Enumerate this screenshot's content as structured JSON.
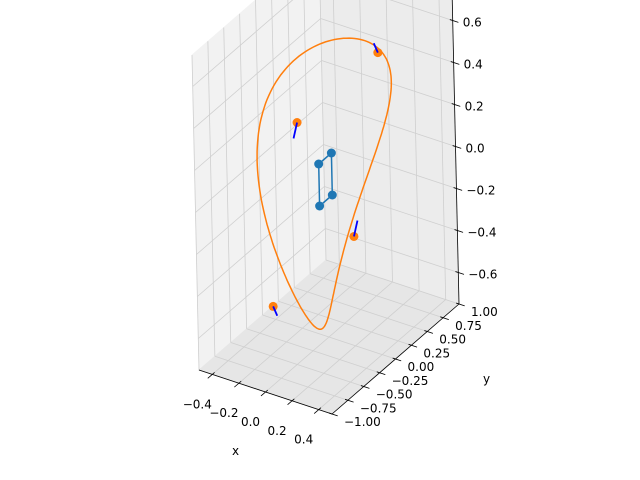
{
  "chart_data": {
    "type": "scatter",
    "projection": "3d",
    "title": "",
    "xlabel": "x",
    "ylabel": "y",
    "zlabel": "",
    "xlim": [
      -0.5,
      0.5
    ],
    "ylim": [
      -1.0,
      1.0
    ],
    "zlim": [
      -0.75,
      0.75
    ],
    "grid": true,
    "xticks": [
      -0.4,
      -0.2,
      0.0,
      0.2,
      0.4
    ],
    "xtick_labels": [
      "−0.4",
      "−0.2",
      "0.0",
      "0.2",
      "0.4"
    ],
    "yticks": [
      -1.0,
      -0.75,
      -0.5,
      -0.25,
      0.0,
      0.25,
      0.5,
      0.75,
      1.0
    ],
    "ytick_labels": [
      "−1.00",
      "−0.75",
      "−0.50",
      "−0.25",
      "0.00",
      "0.25",
      "0.50",
      "0.75",
      "1.00"
    ],
    "zticks": [
      -0.6,
      -0.4,
      -0.2,
      0.0,
      0.2,
      0.4,
      0.6
    ],
    "ztick_labels": [
      "−0.6",
      "−0.4",
      "−0.2",
      "0.0",
      "0.2",
      "0.4",
      "0.6"
    ],
    "colors": {
      "inner": "#1f77b4",
      "outer": "#ff7f0e",
      "arrows": "#0000ff"
    },
    "series": [
      {
        "kind": "scatter-loop",
        "color": "#1f77b4",
        "points": [
          {
            "x": 0.0,
            "y": -0.1,
            "z": 0.1
          },
          {
            "x": 0.0,
            "y": 0.1,
            "z": 0.1
          },
          {
            "x": 0.0,
            "y": 0.1,
            "z": -0.1
          },
          {
            "x": 0.0,
            "y": -0.1,
            "z": -0.1
          }
        ]
      },
      {
        "kind": "ellipse",
        "color": "#ff7f0e",
        "x_amplitude": 0.15,
        "y_radius": 0.9,
        "z_radius": 0.65
      },
      {
        "kind": "scatter",
        "color": "#ff7f0e",
        "points": [
          {
            "x": 0.106,
            "y": 0.636,
            "z": 0.46
          },
          {
            "x": -0.106,
            "y": 0.636,
            "z": -0.46
          },
          {
            "x": -0.106,
            "y": -0.636,
            "z": -0.46
          },
          {
            "x": 0.106,
            "y": -0.636,
            "z": 0.46
          }
        ]
      },
      {
        "kind": "quiver",
        "color": "#0000ff",
        "vectors": [
          {
            "x": 0.106,
            "y": 0.636,
            "z": 0.46,
            "u": 0.0,
            "v": -0.06,
            "w": 0.06
          },
          {
            "x": -0.106,
            "y": 0.636,
            "z": -0.46,
            "u": 0.0,
            "v": 0.06,
            "w": 0.06
          },
          {
            "x": -0.106,
            "y": -0.636,
            "z": -0.46,
            "u": 0.0,
            "v": 0.06,
            "w": -0.06
          },
          {
            "x": 0.106,
            "y": -0.636,
            "z": 0.46,
            "u": 0.0,
            "v": -0.06,
            "w": -0.06
          }
        ]
      }
    ]
  }
}
